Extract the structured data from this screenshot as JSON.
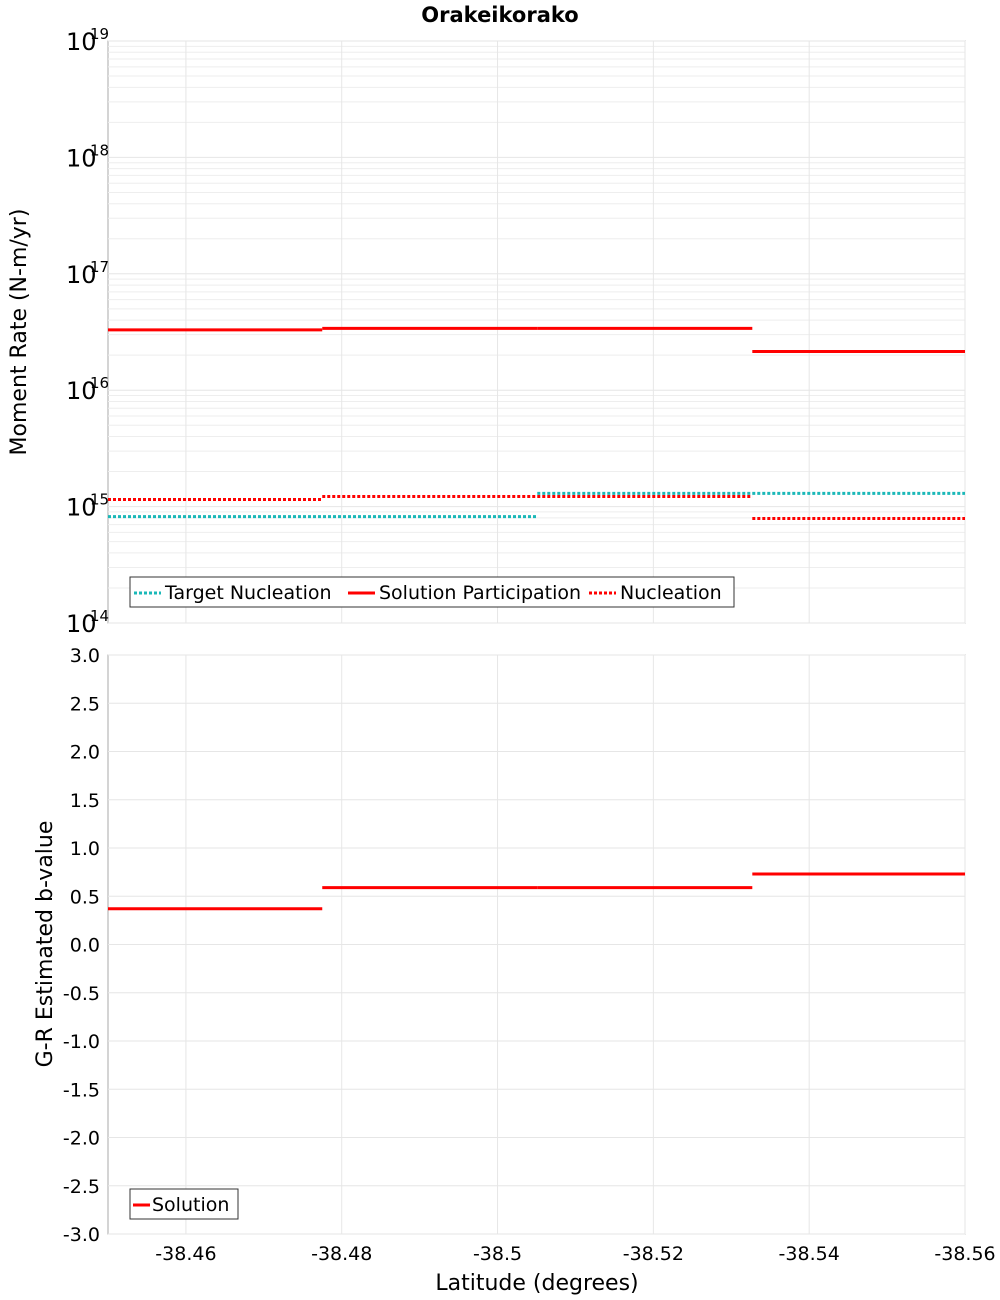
{
  "title": "Orakeikorako",
  "colors": {
    "target": "#1ab8b8",
    "solution": "#ff0000",
    "nucleation": "#ff0000"
  },
  "chart_data": [
    {
      "type": "line",
      "subtype": "step",
      "ylabel": "Moment Rate (N-m/yr)",
      "yscale": "log",
      "ylim": [
        100000000000000.0,
        1e+19
      ],
      "y_ticks": [
        {
          "base": "10",
          "exp": "14"
        },
        {
          "base": "10",
          "exp": "15"
        },
        {
          "base": "10",
          "exp": "16"
        },
        {
          "base": "10",
          "exp": "17"
        },
        {
          "base": "10",
          "exp": "18"
        },
        {
          "base": "10",
          "exp": "19"
        }
      ],
      "xlim": [
        -38.45,
        -38.56
      ],
      "grid": true,
      "legend_position": "bottom-left",
      "series": [
        {
          "name": "Target Nucleation",
          "style": "dotted",
          "color": "#1ab8b8",
          "segments": [
            {
              "x": [
                -38.45,
                -38.5051
              ],
              "y": 820000000000000.0
            },
            {
              "x": [
                -38.5051,
                -38.56
              ],
              "y": 1300000000000000.0
            }
          ]
        },
        {
          "name": "Solution Participation",
          "style": "solid",
          "color": "#ff0000",
          "segments": [
            {
              "x": [
                -38.45,
                -38.4775
              ],
              "y": 3.3e+16
            },
            {
              "x": [
                -38.4775,
                -38.5051
              ],
              "y": 3.4e+16
            },
            {
              "x": [
                -38.5051,
                -38.5327
              ],
              "y": 3.4e+16
            },
            {
              "x": [
                -38.5327,
                -38.56
              ],
              "y": 2.15e+16
            }
          ]
        },
        {
          "name": "Nucleation",
          "style": "dotted",
          "color": "#ff0000",
          "segments": [
            {
              "x": [
                -38.45,
                -38.4775
              ],
              "y": 1150000000000000.0
            },
            {
              "x": [
                -38.4775,
                -38.5051
              ],
              "y": 1220000000000000.0
            },
            {
              "x": [
                -38.5051,
                -38.5327
              ],
              "y": 1220000000000000.0
            },
            {
              "x": [
                -38.5327,
                -38.56
              ],
              "y": 790000000000000.0
            }
          ]
        }
      ]
    },
    {
      "type": "line",
      "subtype": "step",
      "xlabel": "Latitude (degrees)",
      "ylabel": "G-R Estimated b-value",
      "ylim": [
        -3.0,
        3.0
      ],
      "y_ticks": [
        "-3.0",
        "-2.5",
        "-2.0",
        "-1.5",
        "-1.0",
        "-0.5",
        "0.0",
        "0.5",
        "1.0",
        "1.5",
        "2.0",
        "2.5",
        "3.0"
      ],
      "xlim": [
        -38.45,
        -38.56
      ],
      "x_ticks": [
        "-38.46",
        "-38.48",
        "-38.5",
        "-38.52",
        "-38.54",
        "-38.56"
      ],
      "grid": true,
      "legend_position": "bottom-left",
      "series": [
        {
          "name": "Solution",
          "style": "solid",
          "color": "#ff0000",
          "segments": [
            {
              "x": [
                -38.45,
                -38.4775
              ],
              "y": 0.37
            },
            {
              "x": [
                -38.4775,
                -38.5051
              ],
              "y": 0.59
            },
            {
              "x": [
                -38.5051,
                -38.5327
              ],
              "y": 0.59
            },
            {
              "x": [
                -38.5327,
                -38.56
              ],
              "y": 0.73
            }
          ]
        }
      ]
    }
  ]
}
